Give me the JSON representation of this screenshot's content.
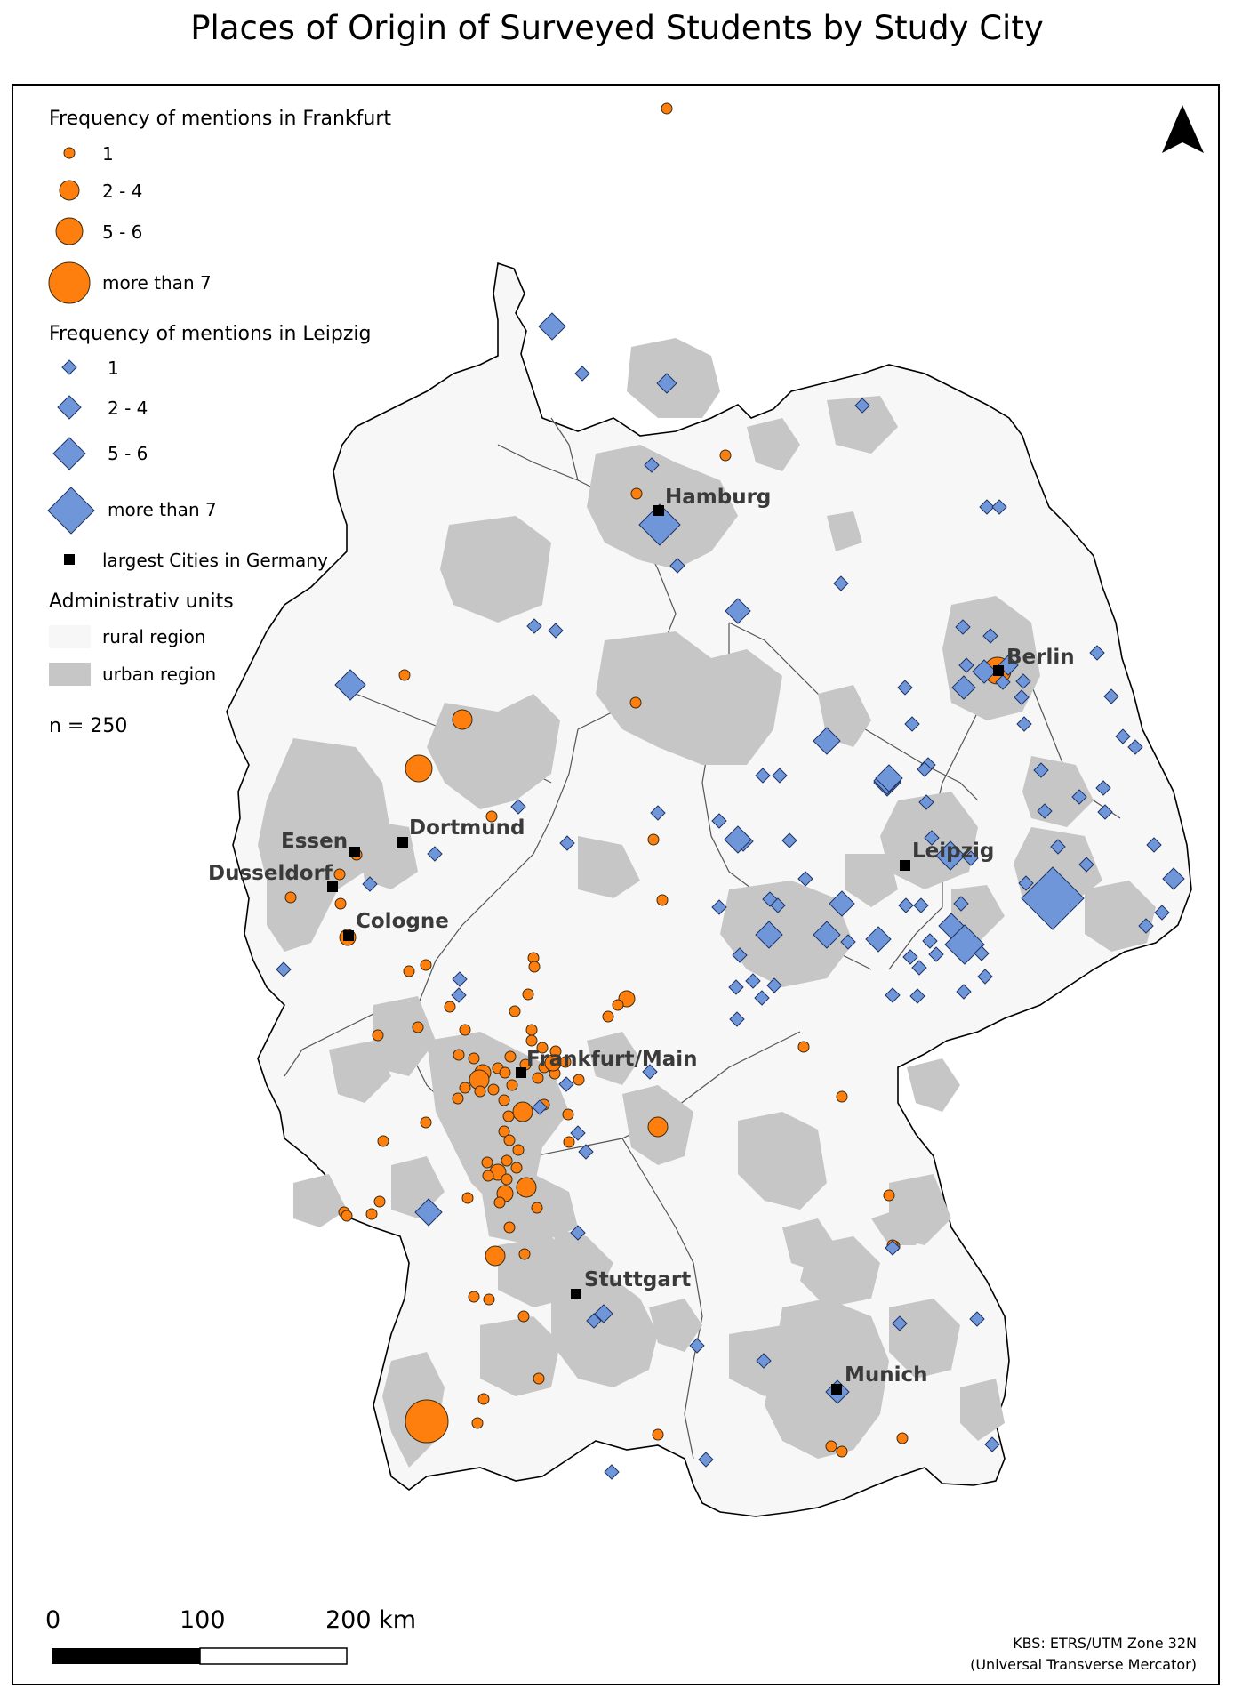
{
  "title": "Places of Origin of Surveyed Students by Study City",
  "legend": {
    "frankfurt_heading": "Frequency of mentions in Frankfurt",
    "frankfurt_classes": [
      "1",
      "2 - 4",
      "5 - 6",
      "more than 7"
    ],
    "leipzig_heading": "Frequency of mentions in Leipzig",
    "leipzig_classes": [
      "1",
      "2 - 4",
      "5 - 6",
      "more than 7"
    ],
    "cities_label": "largest Cities in Germany",
    "admin_heading": "Administrativ units",
    "rural_label": "rural region",
    "urban_label": "urban region",
    "n_label": "n = 250"
  },
  "cities": [
    "Hamburg",
    "Berlin",
    "Dortmund",
    "Essen",
    "Dusseldorf",
    "Cologne",
    "Leipzig",
    "Frankfurt/Main",
    "Stuttgart",
    "Munich"
  ],
  "scale_bar": {
    "ticks": [
      "0",
      "100",
      "200 km"
    ]
  },
  "crs": {
    "line1": "KBS:   ETRS/UTM   Zone   32N",
    "line2": "(Universal Transverse Mercator)"
  },
  "colors": {
    "frankfurt": "#ff7f0e",
    "leipzig": "#6f96d8",
    "rural": "#f7f7f7",
    "urban": "#c6c6c6",
    "city_marker": "#000000"
  },
  "icons": {
    "north_arrow": "north-arrow-icon"
  }
}
